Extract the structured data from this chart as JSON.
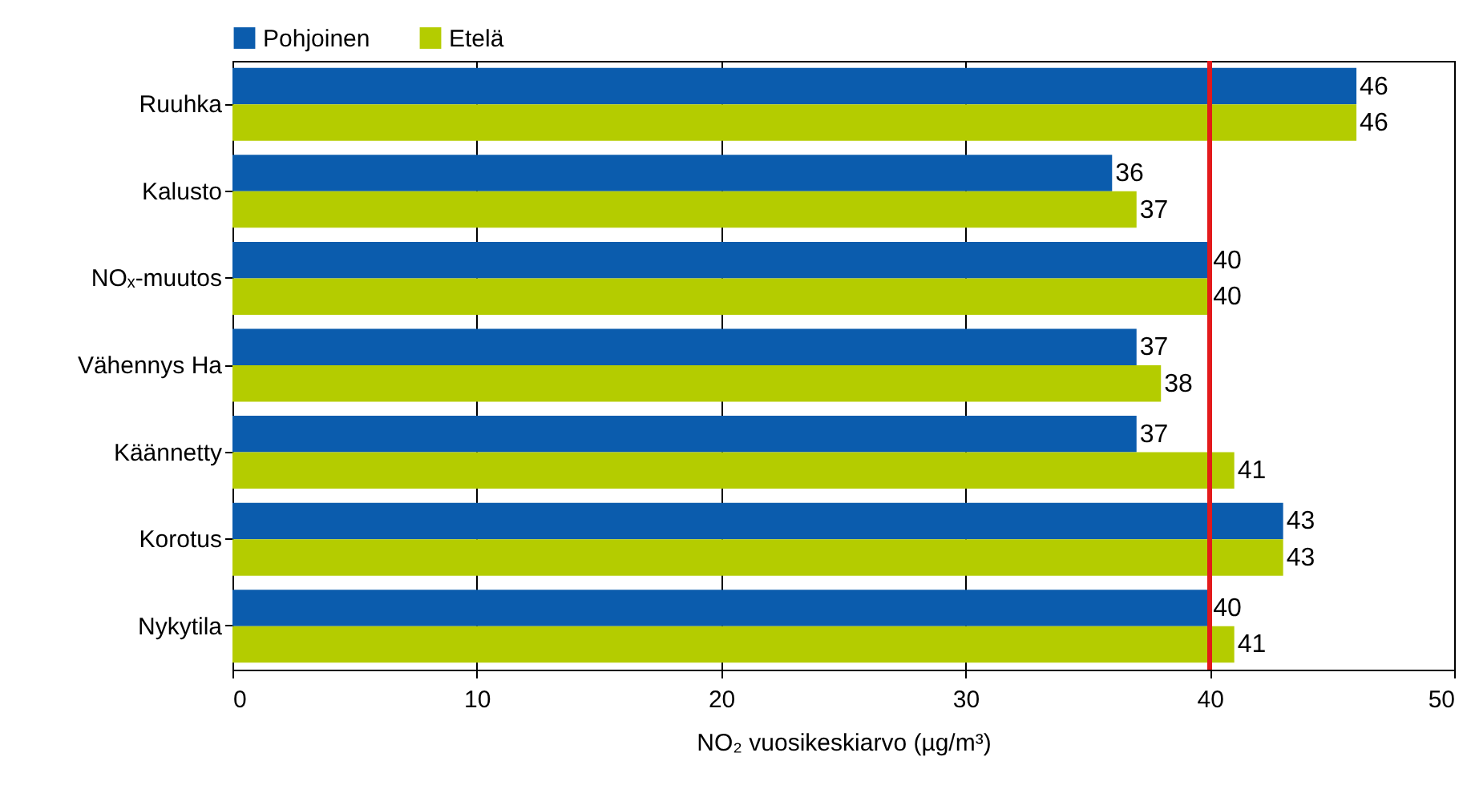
{
  "chart_data": {
    "type": "bar",
    "orientation": "horizontal",
    "xlabel": "NO₂ vuosikeskiarvo (µg/m³)",
    "categories": [
      "Ruuhka",
      "Kalusto",
      "NOₓ-muutos",
      "Vähennys Ha",
      "Käännetty",
      "Korotus",
      "Nykytila"
    ],
    "series": [
      {
        "name": "Pohjoinen",
        "color": "#0b5cad",
        "values": [
          46,
          36,
          40,
          37,
          37,
          43,
          40
        ]
      },
      {
        "name": "Etelä",
        "color": "#b4cc00",
        "values": [
          46,
          37,
          40,
          38,
          41,
          43,
          41
        ]
      }
    ],
    "xlim": [
      0,
      50
    ],
    "xticks": [
      0,
      10,
      20,
      30,
      40,
      50
    ],
    "grid": "x",
    "legend": "top",
    "data_labels": true,
    "ref_lines": [
      {
        "axis": "x",
        "value": 40,
        "color": "#e31a1c"
      }
    ]
  }
}
